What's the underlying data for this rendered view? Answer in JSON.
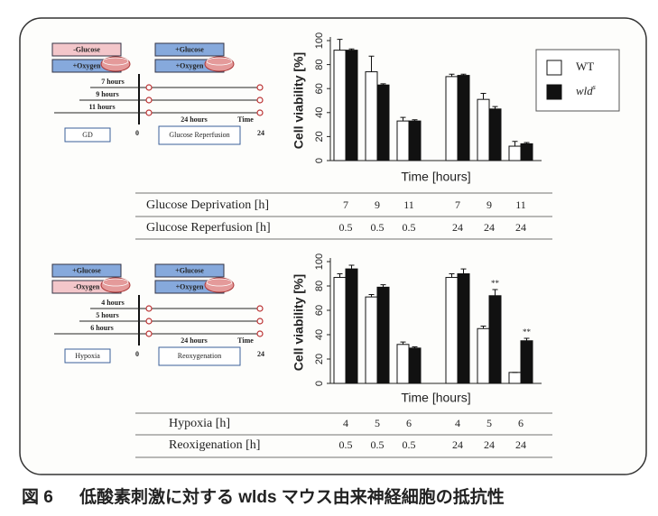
{
  "chart_data": [
    {
      "type": "bar",
      "ylabel": "Cell viability [%]",
      "xlabel": "Time [hours]",
      "ylim": [
        0,
        100
      ],
      "yticks": [
        0,
        20,
        40,
        60,
        80,
        100
      ],
      "legend": "right",
      "series": [
        {
          "name": "WT",
          "color": "#ffffff",
          "values": [
            92,
            74,
            33,
            70,
            51,
            12
          ],
          "errors": [
            9,
            13,
            3,
            2,
            5,
            4
          ]
        },
        {
          "name": "wld",
          "name_sup": "s",
          "color": "#111111",
          "values": [
            92,
            63,
            33,
            71,
            43,
            14
          ],
          "errors": [
            1,
            1,
            1,
            1,
            2,
            1
          ]
        }
      ],
      "table": [
        {
          "label": "Glucose Deprivation [h]",
          "values": [
            7,
            9,
            11,
            7,
            9,
            11
          ]
        },
        {
          "label": "Glucose Reperfusion [h]",
          "values": [
            0.5,
            0.5,
            0.5,
            24,
            24,
            24
          ]
        }
      ]
    },
    {
      "type": "bar",
      "ylabel": "Cell viability [%]",
      "xlabel": "Time [hours]",
      "ylim": [
        0,
        100
      ],
      "yticks": [
        0,
        20,
        40,
        60,
        80,
        100
      ],
      "series": [
        {
          "color": "#ffffff",
          "values": [
            87,
            71,
            32,
            87,
            45,
            9
          ],
          "errors": [
            3,
            2,
            2,
            3,
            2,
            0
          ]
        },
        {
          "color": "#111111",
          "values": [
            94,
            79,
            29,
            90,
            72,
            35
          ],
          "errors": [
            3,
            2,
            1,
            4,
            5,
            2
          ],
          "annotations": [
            null,
            null,
            null,
            null,
            "**",
            "**"
          ]
        }
      ],
      "table": [
        {
          "label": "Hypoxia [h]",
          "values": [
            4,
            5,
            6,
            4,
            5,
            6
          ]
        },
        {
          "label": "Reoxigenation [h]",
          "values": [
            0.5,
            0.5,
            0.5,
            24,
            24,
            24
          ]
        }
      ]
    }
  ],
  "diagrams": [
    {
      "left_boxes": [
        {
          "text": "-Glucose",
          "color": "#f3c6ca"
        },
        {
          "text": "+Oxygen",
          "color": "#86a9dc"
        }
      ],
      "right_boxes": [
        {
          "text": "+Glucose",
          "color": "#86a9dc"
        },
        {
          "text": "+Oxygen",
          "color": "#86a9dc"
        }
      ],
      "durations": [
        "7 hours",
        "9 hours",
        "11 hours"
      ],
      "recovery": "24 hours",
      "time_label": "Time",
      "start": 0,
      "end": 24,
      "condition_box": "GD",
      "recovery_box": "Glucose Reperfusion"
    },
    {
      "left_boxes": [
        {
          "text": "+Glucose",
          "color": "#86a9dc"
        },
        {
          "text": "-Oxygen",
          "color": "#f3c6ca"
        }
      ],
      "right_boxes": [
        {
          "text": "+Glucose",
          "color": "#86a9dc"
        },
        {
          "text": "+Oxygen",
          "color": "#86a9dc"
        }
      ],
      "durations": [
        "4 hours",
        "5 hours",
        "6 hours"
      ],
      "recovery": "24 hours",
      "time_label": "Time",
      "start": 0,
      "end": 24,
      "condition_box": "Hypoxia",
      "recovery_box": "Reoxygenation"
    }
  ],
  "caption": {
    "figure": "図 6",
    "text": "低酸素刺激に対する wlds マウス由来神経細胞の抵抗性"
  }
}
